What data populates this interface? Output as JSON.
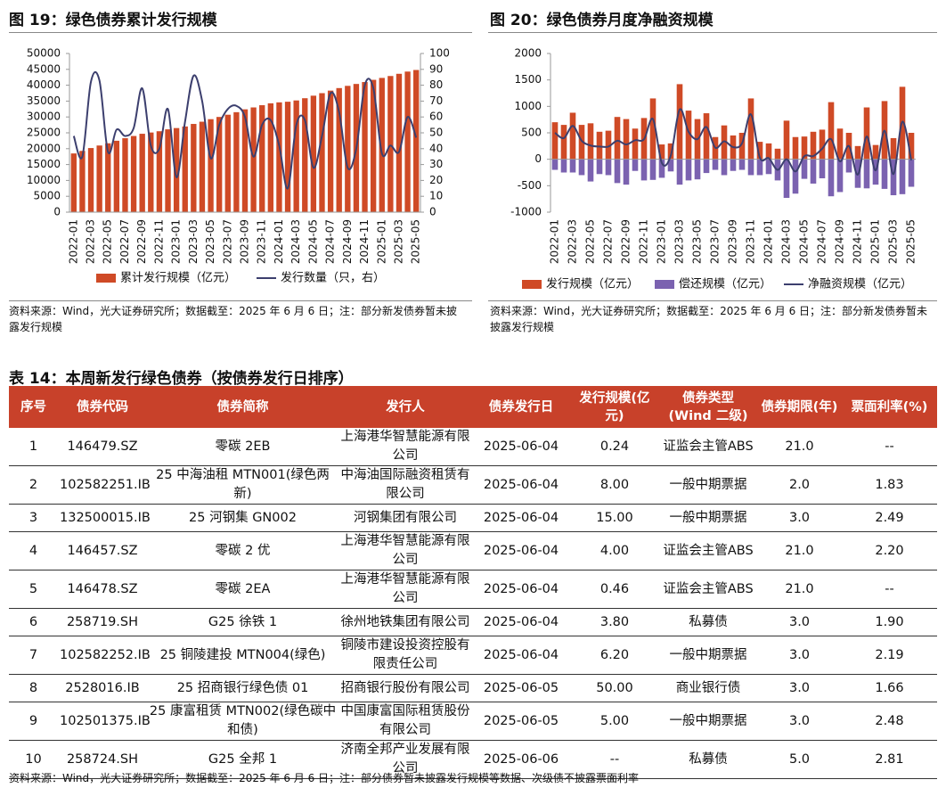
{
  "chart_data": [
    {
      "type": "bar",
      "title": "图 19：绿色债券累计发行规模",
      "categories": [
        "2022-01",
        null,
        "2022-03",
        null,
        "2022-05",
        null,
        "2022-07",
        null,
        "2022-09",
        null,
        "2022-11",
        null,
        "2023-01",
        null,
        "2023-03",
        null,
        "2023-05",
        null,
        "2023-07",
        null,
        "2023-09",
        null,
        "2023-11",
        null,
        "2024-01",
        null,
        "2024-03",
        null,
        "2024-05",
        null,
        "2024-07",
        null,
        "2024-09",
        null,
        "2024-11",
        null,
        "2025-01",
        null,
        "2025-03",
        null,
        "2025-05"
      ],
      "series": [
        {
          "name": "累计发行规模（亿元）",
          "type": "bar",
          "color": "#cf4a26",
          "values": [
            18500,
            19300,
            20200,
            21000,
            21700,
            22500,
            23300,
            24000,
            24700,
            25100,
            25500,
            26100,
            26500,
            27000,
            27800,
            28500,
            29300,
            30000,
            30700,
            31500,
            32400,
            33000,
            33700,
            34300,
            34600,
            34800,
            35200,
            35900,
            36700,
            37500,
            38300,
            39100,
            39800,
            40400,
            41000,
            41700,
            42300,
            42900,
            43600,
            44300,
            44800
          ]
        },
        {
          "name": "发行数量（只，右）",
          "type": "line",
          "axis": "y2",
          "color": "#3c3f6e",
          "values": [
            48,
            35,
            82,
            83,
            38,
            52,
            48,
            53,
            78,
            42,
            40,
            65,
            22,
            57,
            86,
            70,
            34,
            55,
            65,
            67,
            60,
            35,
            55,
            58,
            42,
            15,
            55,
            58,
            28,
            48,
            75,
            63,
            28,
            40,
            80,
            78,
            37,
            42,
            38,
            60,
            47
          ]
        }
      ],
      "ylim": [
        0,
        50000
      ],
      "yticks": [
        0,
        5000,
        10000,
        15000,
        20000,
        25000,
        30000,
        35000,
        40000,
        45000,
        50000
      ],
      "y2lim": [
        0,
        100
      ],
      "y2ticks": [
        0,
        10,
        20,
        30,
        40,
        50,
        60,
        70,
        80,
        90,
        100
      ],
      "source": "资料来源：Wind，光大证券研究所；数据截至：2025 年 6 月 6 日；注：部分新发债券暂未披露发行规模"
    },
    {
      "type": "bar",
      "title": "图 20：绿色债券月度净融资规模",
      "categories": [
        "2022-01",
        null,
        "2022-03",
        null,
        "2022-05",
        null,
        "2022-07",
        null,
        "2022-09",
        null,
        "2022-11",
        null,
        "2023-01",
        null,
        "2023-03",
        null,
        "2023-05",
        null,
        "2023-07",
        null,
        "2023-09",
        null,
        "2023-11",
        null,
        "2024-01",
        null,
        "2024-03",
        null,
        "2024-05",
        null,
        "2024-07",
        null,
        "2024-09",
        null,
        "2024-11",
        null,
        "2025-01",
        null,
        "2025-03",
        null,
        "2025-05"
      ],
      "series": [
        {
          "name": "发行规模（亿元）",
          "type": "bar",
          "color": "#cf4a26",
          "values": [
            700,
            650,
            880,
            650,
            680,
            520,
            540,
            800,
            760,
            580,
            780,
            1150,
            280,
            300,
            1420,
            920,
            760,
            870,
            420,
            640,
            450,
            500,
            1150,
            330,
            300,
            200,
            730,
            420,
            430,
            520,
            560,
            1080,
            580,
            500,
            250,
            980,
            270,
            1100,
            400,
            1370,
            500
          ]
        },
        {
          "name": "偿还规模（亿元）",
          "type": "bar",
          "color": "#7b62b0",
          "values": [
            -200,
            -250,
            -250,
            -300,
            -420,
            -280,
            -300,
            -450,
            -480,
            -220,
            -400,
            -390,
            -350,
            -230,
            -480,
            -400,
            -380,
            -260,
            -200,
            -300,
            -220,
            -200,
            -300,
            -300,
            -280,
            -400,
            -730,
            -650,
            -370,
            -460,
            -360,
            -700,
            -620,
            -250,
            -540,
            -550,
            -480,
            -560,
            -680,
            -660,
            -520
          ]
        },
        {
          "name": "净融资规模（亿元）",
          "type": "line",
          "color": "#3c3f6e",
          "values": [
            500,
            400,
            630,
            350,
            260,
            240,
            240,
            350,
            280,
            360,
            380,
            760,
            -70,
            70,
            940,
            520,
            380,
            610,
            220,
            340,
            230,
            300,
            850,
            30,
            20,
            -200,
            0,
            -230,
            60,
            60,
            200,
            380,
            -40,
            250,
            -290,
            430,
            -210,
            540,
            -280,
            710,
            -20
          ]
        }
      ],
      "ylim": [
        -1000,
        2000
      ],
      "yticks": [
        -1000,
        -500,
        0,
        500,
        1000,
        1500,
        2000
      ],
      "source": "资料来源：Wind，光大证券研究所；数据截至：2025 年 6 月 6 日；注：部分新发债券暂未披露发行规模"
    }
  ],
  "table": {
    "title": "表 14：本周新发行绿色债券（按债券发行日排序）",
    "columns": [
      "序号",
      "债券代码",
      "债券简称",
      "发行人",
      "债券发行日",
      "发行规模(亿元)",
      "债券类型(Wind 二级)",
      "债券期限(年)",
      "票面利率(%)"
    ],
    "rows": [
      [
        "1",
        "146479.SZ",
        "零碳 2EB",
        "上海港华智慧能源有限公司",
        "2025-06-04",
        "0.24",
        "证监会主管ABS",
        "21.0",
        "--"
      ],
      [
        "2",
        "102582251.IB",
        "25 中海油租 MTN001(绿色两新)",
        "中海油国际融资租赁有限公司",
        "2025-06-04",
        "8.00",
        "一般中期票据",
        "2.0",
        "1.83"
      ],
      [
        "3",
        "132500015.IB",
        "25 河钢集 GN002",
        "河钢集团有限公司",
        "2025-06-04",
        "15.00",
        "一般中期票据",
        "3.0",
        "2.49"
      ],
      [
        "4",
        "146457.SZ",
        "零碳 2 优",
        "上海港华智慧能源有限公司",
        "2025-06-04",
        "4.00",
        "证监会主管ABS",
        "21.0",
        "2.20"
      ],
      [
        "5",
        "146478.SZ",
        "零碳 2EA",
        "上海港华智慧能源有限公司",
        "2025-06-04",
        "0.46",
        "证监会主管ABS",
        "21.0",
        "--"
      ],
      [
        "6",
        "258719.SH",
        "G25 徐铁 1",
        "徐州地铁集团有限公司",
        "2025-06-04",
        "3.80",
        "私募债",
        "3.0",
        "1.90"
      ],
      [
        "7",
        "102582252.IB",
        "25 铜陵建投 MTN004(绿色)",
        "铜陵市建设投资控股有限责任公司",
        "2025-06-04",
        "6.20",
        "一般中期票据",
        "3.0",
        "2.19"
      ],
      [
        "8",
        "2528016.IB",
        "25 招商银行绿色债 01",
        "招商银行股份有限公司",
        "2025-06-05",
        "50.00",
        "商业银行债",
        "3.0",
        "1.66"
      ],
      [
        "9",
        "102501375.IB",
        "25 康富租赁 MTN002(绿色碳中和债)",
        "中国康富国际租赁股份有限公司",
        "2025-06-05",
        "5.00",
        "一般中期票据",
        "3.0",
        "2.48"
      ],
      [
        "10",
        "258724.SH",
        "G25 全邦 1",
        "济南全邦产业发展有限公司",
        "2025-06-06",
        "--",
        "私募债",
        "5.0",
        "2.81"
      ]
    ],
    "source": "资料来源：Wind，光大证券研究所；数据截至：2025 年 6 月 6 日；注：部分债券暂未披露发行规模等数据、次级债不披露票面利率"
  }
}
